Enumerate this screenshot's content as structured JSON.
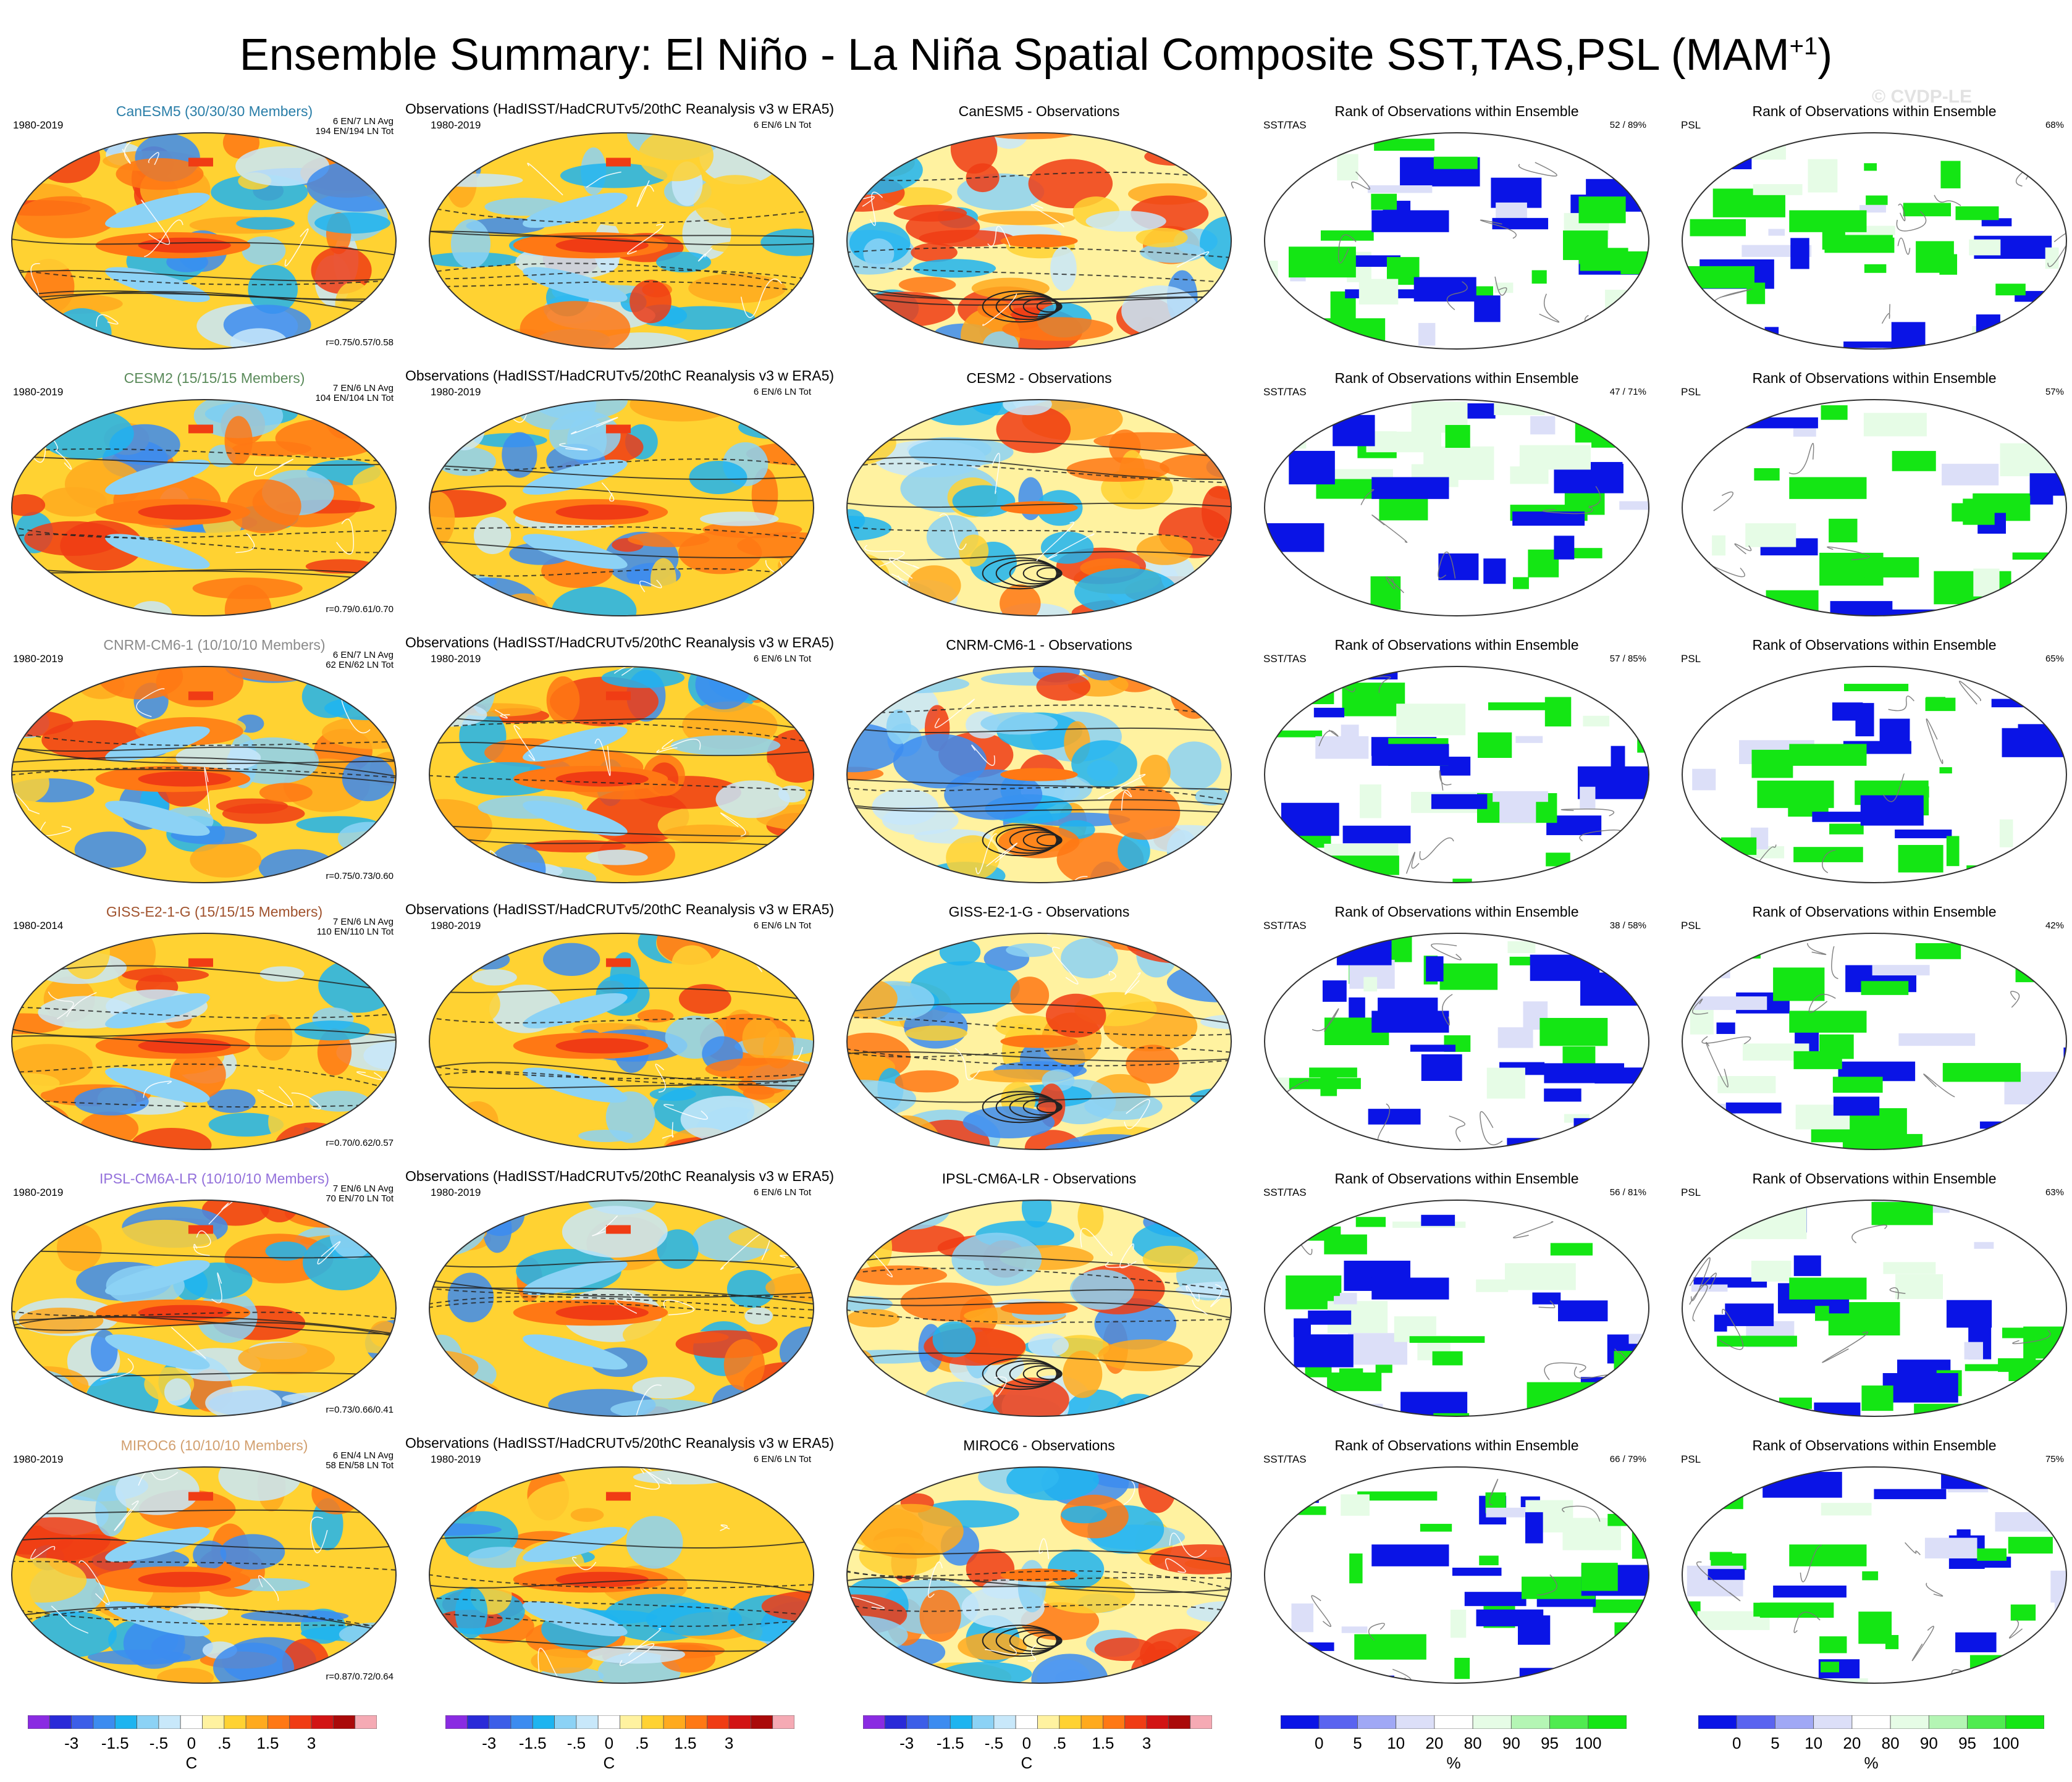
{
  "title": "Ensemble Summary: El Niño - La Niña Spatial Composite SST,TAS,PSL (MAM",
  "title_sup": "+1",
  "title_end": ")",
  "watermark": "© CVDP-LE",
  "colors": {
    "diverging": [
      "#8a2be2",
      "#2a2ad8",
      "#3c5ee8",
      "#3c8cf0",
      "#1eb4f0",
      "#8cd2f5",
      "#c8e8fa",
      "#ffffff",
      "#fff2a0",
      "#ffd232",
      "#ffaa1e",
      "#ff7814",
      "#f03c14",
      "#d21414",
      "#aa0a0a",
      "#f5aab4"
    ],
    "rank": [
      "#0a14e6",
      "#5a64f0",
      "#a0a8f5",
      "#dcdff8",
      "#ffffff",
      "#e6fce6",
      "#b4f5b4",
      "#50eb50",
      "#14e614"
    ]
  },
  "rows": [
    {
      "model_title": "CanESM5 (30/30/30 Members)",
      "model_color": "#2a7ea8",
      "model_years": "1980-2019",
      "model_stats": [
        "6 EN/7 LN Avg",
        "194 EN/194 LN Tot"
      ],
      "model_r": "r=0.75/0.57/0.58",
      "obs_title": "Observations (HadISST/HadCRUTv5/20thC Reanalysis v3 w ERA5)",
      "obs_years": "1980-2019",
      "obs_stats": "6 EN/6 LN Tot",
      "diff_title": "CanESM5 - Observations",
      "rank_title": "Rank of Observations within Ensemble",
      "rank_left_var": "SST/TAS",
      "rank_left_pct": "52 /  89%",
      "rank_right_var": "PSL",
      "rank_right_pct": "68%"
    },
    {
      "model_title": "CESM2 (15/15/15 Members)",
      "model_color": "#5a8a5a",
      "model_years": "1980-2019",
      "model_stats": [
        "7 EN/6 LN Avg",
        "104 EN/104 LN Tot"
      ],
      "model_r": "r=0.79/0.61/0.70",
      "obs_title": "Observations (HadISST/HadCRUTv5/20thC Reanalysis v3 w ERA5)",
      "obs_years": "1980-2019",
      "obs_stats": "6 EN/6 LN Tot",
      "diff_title": "CESM2 - Observations",
      "rank_title": "Rank of Observations within Ensemble",
      "rank_left_var": "SST/TAS",
      "rank_left_pct": "47 /  71%",
      "rank_right_var": "PSL",
      "rank_right_pct": "57%"
    },
    {
      "model_title": "CNRM-CM6-1 (10/10/10 Members)",
      "model_color": "#8a8a8a",
      "model_years": "1980-2019",
      "model_stats": [
        "6 EN/7 LN Avg",
        "62 EN/62 LN Tot"
      ],
      "model_r": "r=0.75/0.73/0.60",
      "obs_title": "Observations (HadISST/HadCRUTv5/20thC Reanalysis v3 w ERA5)",
      "obs_years": "1980-2019",
      "obs_stats": "6 EN/6 LN Tot",
      "diff_title": "CNRM-CM6-1 - Observations",
      "rank_title": "Rank of Observations within Ensemble",
      "rank_left_var": "SST/TAS",
      "rank_left_pct": "57 /  85%",
      "rank_right_var": "PSL",
      "rank_right_pct": "65%"
    },
    {
      "model_title": "GISS-E2-1-G (15/15/15 Members)",
      "model_color": "#a0522d",
      "model_years": "1980-2014",
      "model_stats": [
        "7 EN/6 LN Avg",
        "110 EN/110 LN Tot"
      ],
      "model_r": "r=0.70/0.62/0.57",
      "obs_title": "Observations (HadISST/HadCRUTv5/20thC Reanalysis v3 w ERA5)",
      "obs_years": "1980-2019",
      "obs_stats": "6 EN/6 LN Tot",
      "diff_title": "GISS-E2-1-G - Observations",
      "rank_title": "Rank of Observations within Ensemble",
      "rank_left_var": "SST/TAS",
      "rank_left_pct": "38 /  58%",
      "rank_right_var": "PSL",
      "rank_right_pct": "42%"
    },
    {
      "model_title": "IPSL-CM6A-LR (10/10/10 Members)",
      "model_color": "#9370db",
      "model_years": "1980-2019",
      "model_stats": [
        "7 EN/6 LN Avg",
        "70 EN/70 LN Tot"
      ],
      "model_r": "r=0.73/0.66/0.41",
      "obs_title": "Observations (HadISST/HadCRUTv5/20thC Reanalysis v3 w ERA5)",
      "obs_years": "1980-2019",
      "obs_stats": "6 EN/6 LN Tot",
      "diff_title": "IPSL-CM6A-LR - Observations",
      "rank_title": "Rank of Observations within Ensemble",
      "rank_left_var": "SST/TAS",
      "rank_left_pct": "56 /  81%",
      "rank_right_var": "PSL",
      "rank_right_pct": "63%"
    },
    {
      "model_title": "MIROC6 (10/10/10 Members)",
      "model_color": "#d2a070",
      "model_years": "1980-2019",
      "model_stats": [
        "6 EN/4 LN Avg",
        "58 EN/58 LN Tot"
      ],
      "model_r": "r=0.87/0.72/0.64",
      "obs_title": "Observations (HadISST/HadCRUTv5/20thC Reanalysis v3 w ERA5)",
      "obs_years": "1980-2019",
      "obs_stats": "6 EN/6 LN Tot",
      "diff_title": "MIROC6 - Observations",
      "rank_title": "Rank of Observations within Ensemble",
      "rank_left_var": "SST/TAS",
      "rank_left_pct": "66 /  79%",
      "rank_right_var": "PSL",
      "rank_right_pct": "75%"
    }
  ],
  "colorbars": [
    {
      "labels": [
        "-3",
        "-1.5",
        "-.5",
        "0",
        ".5",
        "1.5",
        "3"
      ],
      "unit": "C"
    },
    {
      "labels": [
        "-3",
        "-1.5",
        "-.5",
        "0",
        ".5",
        "1.5",
        "3"
      ],
      "unit": "C"
    },
    {
      "labels": [
        "-3",
        "-1.5",
        "-.5",
        "0",
        ".5",
        "1.5",
        "3"
      ],
      "unit": "C"
    },
    {
      "labels": [
        "0",
        "5",
        "10",
        "20",
        "80",
        "90",
        "95",
        "100"
      ],
      "unit": "%"
    },
    {
      "labels": [
        "0",
        "5",
        "10",
        "20",
        "80",
        "90",
        "95",
        "100"
      ],
      "unit": "%"
    }
  ],
  "chart_data": {
    "type": "heatmap",
    "title": "Ensemble Summary: El Niño - La Niña Spatial Composite SST,TAS,PSL (MAM+1)",
    "layout": "6 model rows x 5 panel columns (model composite, observations, model - observations, rank SST/TAS, rank PSL)",
    "models": [
      "CanESM5",
      "CESM2",
      "CNRM-CM6-1",
      "GISS-E2-1-G",
      "IPSL-CM6A-LR",
      "MIROC6"
    ],
    "pattern_correlations": [
      "0.75/0.57/0.58",
      "0.79/0.61/0.70",
      "0.75/0.73/0.60",
      "0.70/0.62/0.57",
      "0.73/0.66/0.41",
      "0.87/0.72/0.64"
    ],
    "rank_sst_tas_percent": [
      [
        52,
        89
      ],
      [
        47,
        71
      ],
      [
        57,
        85
      ],
      [
        38,
        58
      ],
      [
        56,
        81
      ],
      [
        66,
        79
      ]
    ],
    "rank_psl_percent": [
      68,
      57,
      65,
      42,
      63,
      75
    ],
    "temperature_colorbar_ticks": [
      -3,
      -1.5,
      -0.5,
      0,
      0.5,
      1.5,
      3
    ],
    "rank_colorbar_ticks": [
      0,
      5,
      10,
      20,
      80,
      90,
      95,
      100
    ],
    "units": [
      "C",
      "%"
    ]
  }
}
